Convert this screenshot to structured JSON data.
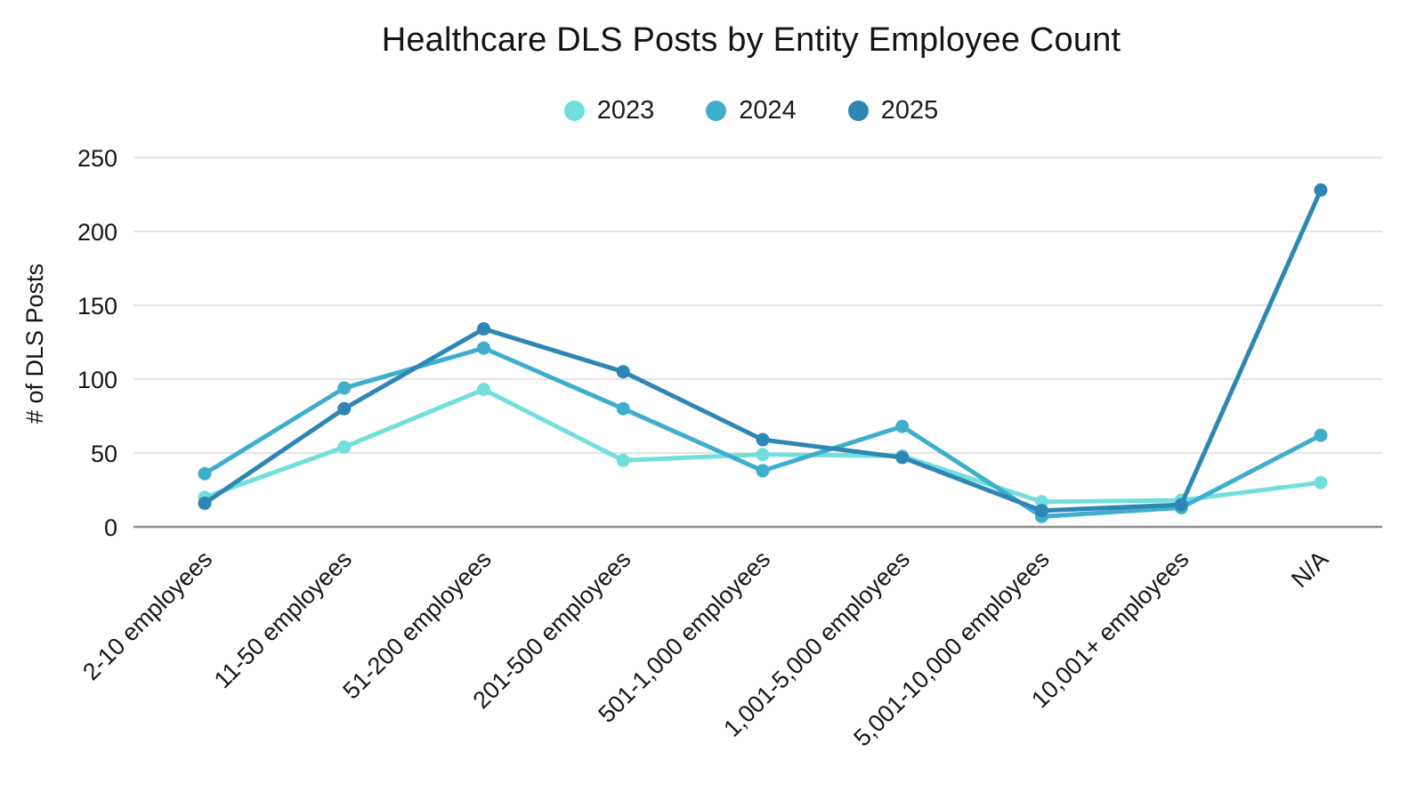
{
  "chart_data": {
    "type": "line",
    "title": "Healthcare DLS Posts by Entity Employee Count",
    "xlabel": "",
    "ylabel": "# of DLS Posts",
    "ylim": [
      0,
      250
    ],
    "yticks": [
      0,
      50,
      100,
      150,
      200,
      250
    ],
    "grid": true,
    "legend_position": "top",
    "categories": [
      "2-10 employees",
      "11-50 employees",
      "51-200 employees",
      "201-500 employees",
      "501-1,000 employees",
      "1,001-5,000 employees",
      "5,001-10,000 employees",
      "10,001+ employees",
      "N/A"
    ],
    "series": [
      {
        "name": "2023",
        "color": "#72DFDC",
        "values": [
          20,
          54,
          93,
          45,
          49,
          48,
          17,
          18,
          30
        ]
      },
      {
        "name": "2024",
        "color": "#3FAECD",
        "values": [
          36,
          94,
          121,
          80,
          38,
          68,
          7,
          13,
          62
        ]
      },
      {
        "name": "2025",
        "color": "#2E86B5",
        "values": [
          16,
          80,
          134,
          105,
          59,
          47,
          11,
          15,
          228
        ]
      }
    ],
    "colors": {
      "grid": "#DCDCDC",
      "axis": "#8F8F8F",
      "tick_text": "#161616",
      "title_text": "#141414"
    }
  }
}
